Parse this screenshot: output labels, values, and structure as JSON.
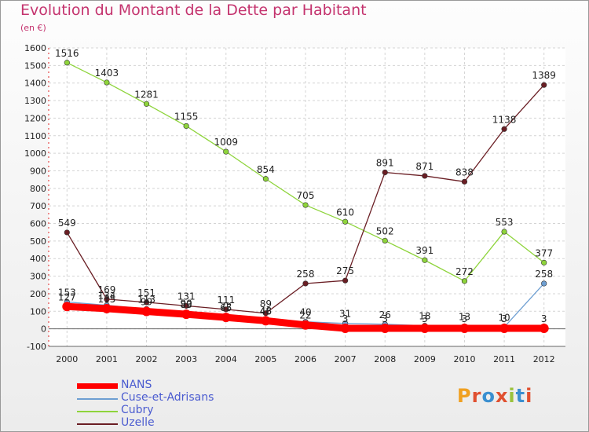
{
  "title": "Evolution du Montant de la Dette par Habitant",
  "unit_label": "(en €)",
  "logo": {
    "text": "Proxiti",
    "colors": [
      "#f0a020",
      "#e05030",
      "#3a8fd0",
      "#e05030",
      "#9ac23c",
      "#3a8fd0",
      "#e05030"
    ]
  },
  "chart_data": {
    "type": "line",
    "x": [
      "2000",
      "2001",
      "2002",
      "2003",
      "2004",
      "2005",
      "2006",
      "2007",
      "2008",
      "2009",
      "2010",
      "2011",
      "2012"
    ],
    "ylim": [
      -100,
      1600
    ],
    "yticks": [
      "-100",
      "0",
      "100",
      "200",
      "300",
      "400",
      "500",
      "600",
      "700",
      "800",
      "900",
      "1000",
      "1100",
      "1200",
      "1300",
      "1400",
      "1500",
      "1600"
    ],
    "grid": true,
    "legend_position": "bottom-left",
    "series": [
      {
        "name": "NANS",
        "color": "#ff0000",
        "values": [
          127,
          115,
          99,
          83,
          65,
          46,
          22,
          3,
          3,
          3,
          3,
          3,
          3
        ],
        "labels": [
          "127",
          "115",
          "99",
          "83",
          "65",
          "46",
          "22",
          "3",
          "3",
          "3",
          "3",
          "3",
          "3"
        ]
      },
      {
        "name": "Cuse-et-Adrisans",
        "color": "#6e9fd2",
        "values": [
          153,
          134,
          113,
          90,
          72,
          48,
          40,
          31,
          26,
          18,
          13,
          10,
          258
        ],
        "labels": [
          "153",
          "134",
          "113",
          "90",
          "72",
          "48",
          "40",
          "31",
          "26",
          "18",
          "13",
          "10",
          "258"
        ]
      },
      {
        "name": "Cubry",
        "color": "#8ed43b",
        "values": [
          1516,
          1403,
          1281,
          1155,
          1009,
          854,
          705,
          610,
          502,
          391,
          272,
          553,
          377
        ],
        "labels": [
          "1516",
          "1403",
          "1281",
          "1155",
          "1009",
          "854",
          "705",
          "610",
          "502",
          "391",
          "272",
          "553",
          "377"
        ]
      },
      {
        "name": "Uzelle",
        "color": "#6a1e24",
        "values": [
          549,
          169,
          151,
          131,
          111,
          89,
          258,
          275,
          891,
          871,
          838,
          1138,
          1389
        ],
        "labels": [
          "549",
          "169",
          "151",
          "131",
          "111",
          "89",
          "258",
          "275",
          "891",
          "871",
          "838",
          "1138",
          "1389"
        ]
      }
    ]
  }
}
